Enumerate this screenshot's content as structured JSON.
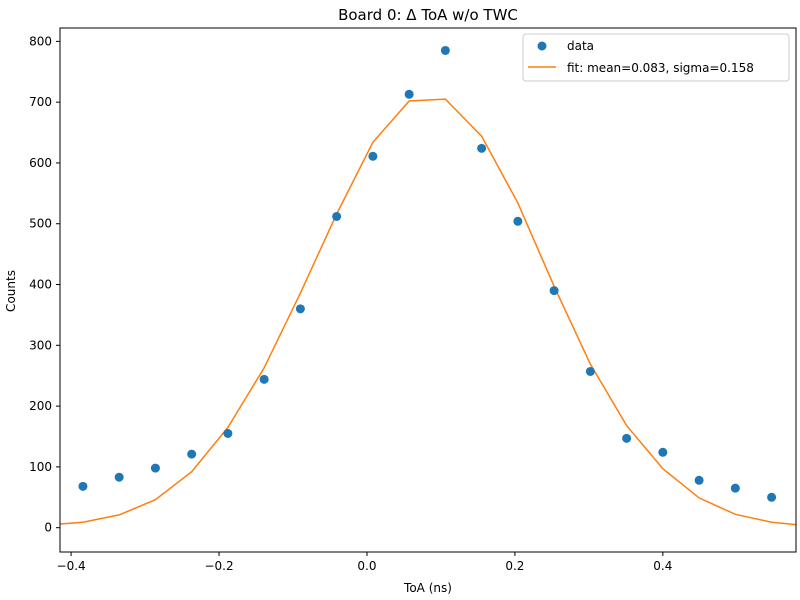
{
  "chart_data": {
    "type": "scatter",
    "title": "Board 0: Δ ToA w/o TWC",
    "xlabel": "ToA (ns)",
    "ylabel": "Counts",
    "xlim": [
      -0.415,
      0.58
    ],
    "ylim": [
      -40,
      822
    ],
    "xticks": [
      -0.4,
      -0.2,
      0.0,
      0.2,
      0.4
    ],
    "xtick_labels": [
      "−0.4",
      "−0.2",
      "0.0",
      "0.2",
      "0.4"
    ],
    "yticks": [
      0,
      100,
      200,
      300,
      400,
      500,
      600,
      700,
      800
    ],
    "ytick_labels": [
      "0",
      "100",
      "200",
      "300",
      "400",
      "500",
      "600",
      "700",
      "800"
    ],
    "legend_position": "top-right",
    "series": [
      {
        "name": "data",
        "kind": "scatter",
        "color": "#1f77b4",
        "x": [
          -0.384,
          -0.335,
          -0.286,
          -0.237,
          -0.188,
          -0.139,
          -0.09,
          -0.041,
          0.008,
          0.057,
          0.106,
          0.155,
          0.204,
          0.253,
          0.302,
          0.351,
          0.4,
          0.449,
          0.498,
          0.547
        ],
        "y": [
          68,
          83,
          98,
          121,
          155,
          244,
          360,
          512,
          611,
          713,
          785,
          624,
          504,
          390,
          257,
          147,
          124,
          78,
          65,
          50
        ]
      },
      {
        "name": "fit: mean=0.083, sigma=0.158",
        "kind": "line",
        "color": "#ff7f0e",
        "x": [
          -0.415,
          -0.384,
          -0.335,
          -0.286,
          -0.237,
          -0.188,
          -0.139,
          -0.09,
          -0.041,
          0.008,
          0.057,
          0.106,
          0.155,
          0.204,
          0.253,
          0.302,
          0.351,
          0.4,
          0.449,
          0.498,
          0.547,
          0.58
        ],
        "y": [
          6,
          9,
          21,
          46,
          92,
          165,
          263,
          386,
          516,
          634,
          702,
          705,
          644,
          534,
          397,
          269,
          168,
          97,
          49,
          22,
          9,
          5
        ]
      }
    ]
  }
}
